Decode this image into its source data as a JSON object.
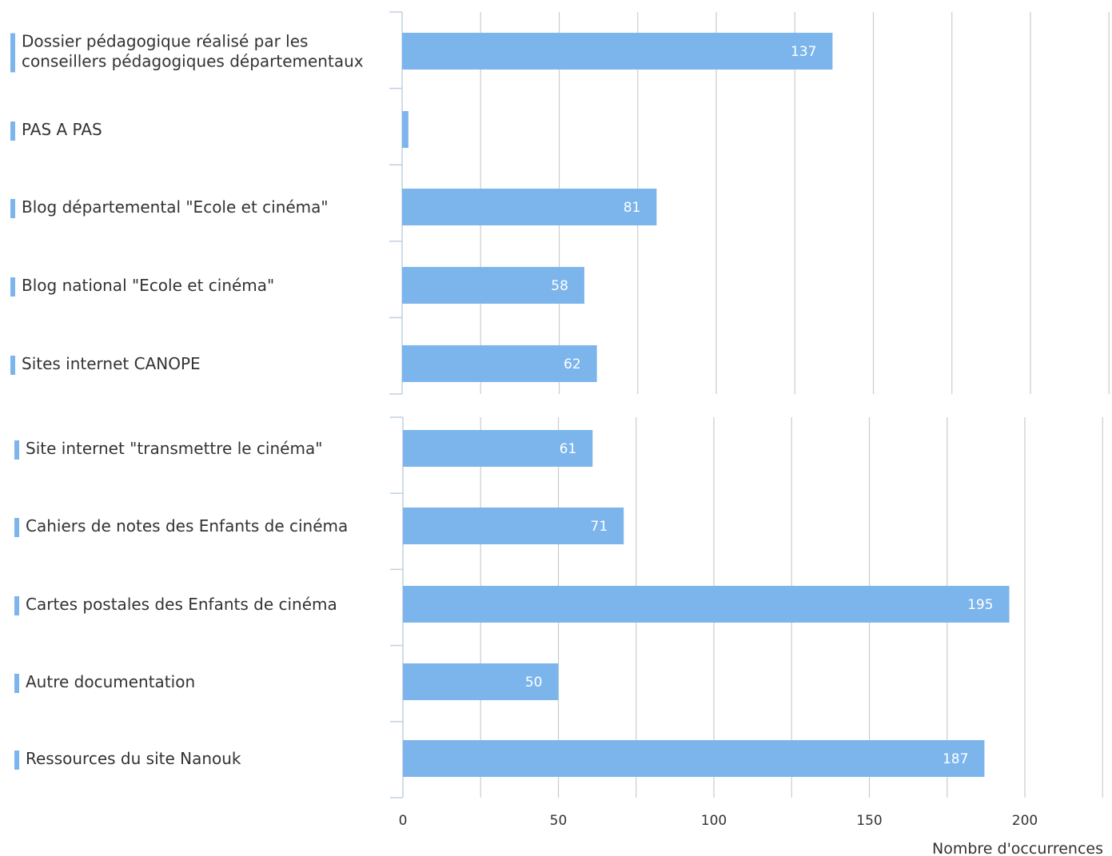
{
  "colors": {
    "bar": "#7cb5ec",
    "grid": "#cccccc",
    "axis": "#c0d0e0",
    "text": "#333333",
    "data_label": "#ffffff"
  },
  "chart_data": [
    {
      "type": "bar",
      "orientation": "horizontal",
      "categories": [
        [
          "Dossier pédagogique réalisé par les",
          "conseillers pédagogiques départementaux"
        ],
        [
          "PAS A PAS"
        ],
        [
          "Blog départemental \"Ecole et cinéma\""
        ],
        [
          "Blog national \"Ecole et cinéma\""
        ],
        [
          "Sites internet CANOPE"
        ]
      ],
      "values": [
        137,
        2,
        81,
        58,
        62
      ],
      "xlim": [
        0,
        225
      ],
      "x_gridlines": [
        0,
        25,
        50,
        75,
        100,
        125,
        150,
        175,
        200,
        225
      ],
      "data_labels": true
    },
    {
      "type": "bar",
      "orientation": "horizontal",
      "categories": [
        [
          "Site internet \"transmettre le cinéma\""
        ],
        [
          "Cahiers de notes des Enfants de cinéma"
        ],
        [
          "Cartes postales des Enfants de cinéma"
        ],
        [
          "Autre documentation"
        ],
        [
          "Ressources du site Nanouk"
        ]
      ],
      "values": [
        61,
        71,
        195,
        50,
        187
      ],
      "xlim": [
        0,
        225
      ],
      "x_gridlines": [
        0,
        25,
        50,
        75,
        100,
        125,
        150,
        175,
        200,
        225
      ],
      "x_ticks": [
        0,
        50,
        100,
        150,
        200
      ],
      "xlabel": "Nombre d'occurrences",
      "data_labels": true
    }
  ]
}
